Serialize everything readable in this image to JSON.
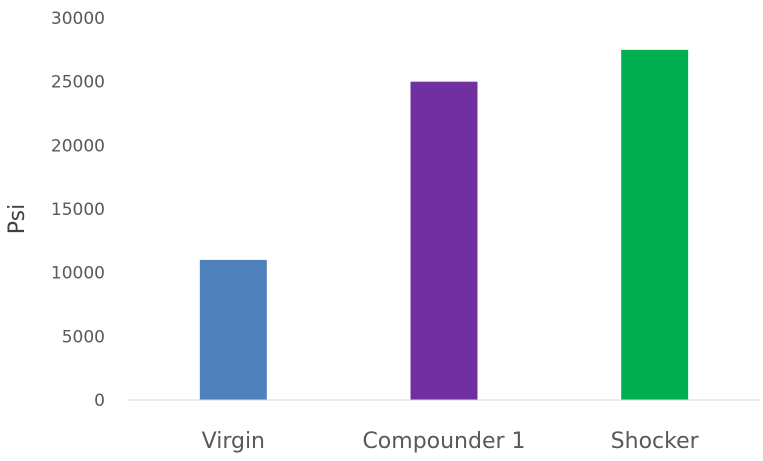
{
  "chart_data": {
    "type": "bar",
    "title": "",
    "xlabel": "",
    "ylabel": "Psi",
    "categories": [
      "Virgin",
      "Compounder 1",
      "Shocker"
    ],
    "values": [
      11000,
      25000,
      27500
    ],
    "colors": [
      "#4f81bd",
      "#7030a0",
      "#00b050"
    ],
    "ylim": [
      0,
      30000
    ],
    "yticks": [
      0,
      5000,
      10000,
      15000,
      20000,
      25000,
      30000
    ],
    "grid": false,
    "legend": "none"
  }
}
